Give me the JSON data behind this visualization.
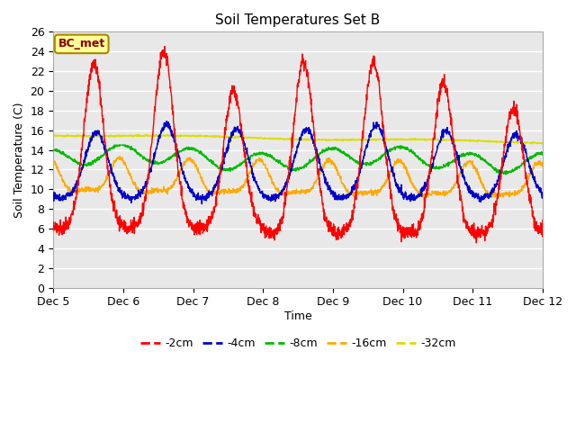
{
  "title": "Soil Temperatures Set B",
  "xlabel": "Time",
  "ylabel": "Soil Temperature (C)",
  "ylim": [
    0,
    26
  ],
  "yticks": [
    0,
    2,
    4,
    6,
    8,
    10,
    12,
    14,
    16,
    18,
    20,
    22,
    24,
    26
  ],
  "annotation": "BC_met",
  "colors": {
    "-2cm": "#ff0000",
    "-4cm": "#0000cc",
    "-8cm": "#00bb00",
    "-16cm": "#ffaa00",
    "-32cm": "#dddd00"
  },
  "legend_labels": [
    "-2cm",
    "-4cm",
    "-8cm",
    "-16cm",
    "-32cm"
  ],
  "bg_color": "#ffffff",
  "plot_bg_color": "#e8e8e8",
  "n_points": 2016,
  "days": [
    "Dec 5",
    "Dec 6",
    "Dec 7",
    "Dec 8",
    "Dec 9",
    "Dec 10",
    "Dec 11",
    "Dec 12"
  ]
}
